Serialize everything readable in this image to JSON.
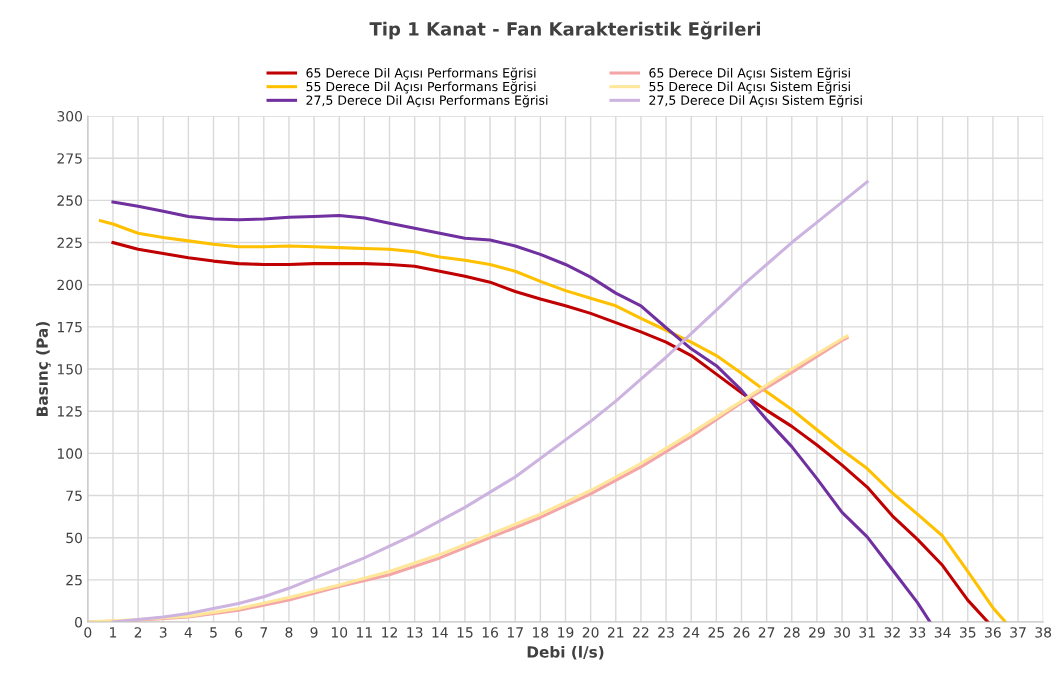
{
  "chart_data": {
    "type": "line",
    "title": "Tip 1 Kanat - Fan Karakteristik Eğrileri",
    "xlabel": "Debi (l/s)",
    "ylabel": "Basınç (Pa)",
    "xlim": [
      0,
      38
    ],
    "xticks": [
      0,
      1,
      2,
      3,
      4,
      5,
      6,
      7,
      8,
      9,
      10,
      11,
      12,
      13,
      14,
      15,
      16,
      17,
      18,
      19,
      20,
      21,
      22,
      23,
      24,
      25,
      26,
      27,
      28,
      29,
      30,
      31,
      32,
      33,
      34,
      35,
      36,
      37,
      38
    ],
    "ylim": [
      0,
      300
    ],
    "yticks": [
      0,
      25,
      50,
      75,
      100,
      125,
      150,
      175,
      200,
      225,
      250,
      275,
      300
    ],
    "grid": true,
    "legend": "top",
    "marker": "none",
    "line_style": "solid",
    "series": [
      {
        "name": "65 Derece Dil Açısı Performans Eğrisi",
        "color": "#c00000",
        "x": [
          1,
          2,
          3,
          4,
          5,
          6,
          7,
          8,
          9,
          10,
          11,
          12,
          13,
          14,
          15,
          16,
          17,
          18,
          19,
          20,
          21,
          22,
          23,
          24,
          25,
          26,
          27,
          28,
          29,
          30,
          31,
          32,
          33,
          34,
          35,
          35.8
        ],
        "values": [
          225,
          221,
          218.5,
          216,
          214,
          212.5,
          212,
          212,
          212.5,
          212.5,
          212.5,
          212,
          211,
          208,
          205,
          201.5,
          196,
          191.5,
          187.5,
          183,
          177.5,
          172,
          166,
          158,
          147,
          136,
          125.5,
          116,
          105,
          93,
          80,
          63,
          49,
          33.5,
          13,
          0
        ]
      },
      {
        "name": "55 Derece Dil Açısı Performans Eğrisi",
        "color": "#ffc000",
        "x": [
          0.5,
          1,
          2,
          3,
          4,
          5,
          6,
          7,
          8,
          9,
          10,
          11,
          12,
          13,
          14,
          15,
          16,
          17,
          18,
          19,
          20,
          21,
          22,
          23,
          24,
          25,
          26,
          27,
          28,
          29,
          30,
          31,
          32,
          33,
          34,
          35,
          36,
          36.5
        ],
        "values": [
          238,
          236,
          230.5,
          228,
          226,
          224,
          222.5,
          222.5,
          223,
          222.5,
          222,
          221.5,
          221,
          219.5,
          216.5,
          214.5,
          212,
          208,
          202,
          196.5,
          192,
          187.5,
          180,
          173,
          166,
          158,
          147.5,
          136.5,
          126,
          114,
          102,
          91,
          76.5,
          64,
          51,
          30,
          8.5,
          0
        ]
      },
      {
        "name": "27,5 Derece Dil Açısı Performans Eğrisi",
        "color": "#7030a0",
        "x": [
          1,
          2,
          3,
          4,
          5,
          6,
          7,
          8,
          9,
          10,
          11,
          12,
          13,
          14,
          15,
          16,
          17,
          18,
          19,
          20,
          21,
          22,
          23,
          24,
          25,
          26,
          27,
          28,
          29,
          30,
          31,
          32,
          33,
          33.5
        ],
        "values": [
          249,
          246.5,
          243.5,
          240.5,
          239,
          238.5,
          239,
          240,
          240.5,
          241,
          239.5,
          236.5,
          233.5,
          230.5,
          227.5,
          226.5,
          223,
          218,
          212,
          204.5,
          195,
          187.5,
          174.5,
          162,
          152,
          137.5,
          120,
          104,
          85,
          65,
          50.5,
          31,
          11.5,
          0
        ]
      },
      {
        "name": "65 Derece Dil Açısı Sistem Eğrisi",
        "color": "#f4a6a6",
        "x": [
          0,
          2,
          4,
          6,
          8,
          10,
          12,
          14,
          16,
          18,
          20,
          22,
          24,
          26,
          28,
          30,
          30.2
        ],
        "values": [
          0,
          1,
          3,
          7,
          13,
          21,
          28,
          38,
          50,
          62,
          76,
          92,
          110,
          130,
          148,
          167,
          168.5
        ]
      },
      {
        "name": "55 Derece Dil Açısı Sistem Eğrisi",
        "color": "#ffe699",
        "x": [
          0,
          2,
          4,
          6,
          8,
          10,
          12,
          14,
          16,
          18,
          20,
          22,
          24,
          26,
          28,
          30,
          30.2
        ],
        "values": [
          0,
          1.5,
          3.5,
          8,
          14.5,
          22,
          30,
          40,
          52,
          64,
          78,
          94,
          112,
          131,
          150,
          168,
          169.5
        ]
      },
      {
        "name": "27,5 Derece Dil Açısı Sistem Eğrisi",
        "color": "#cdb4e0",
        "x": [
          1,
          2,
          3,
          4,
          5,
          6,
          7,
          8,
          9,
          10,
          11,
          12,
          13,
          14,
          15,
          16,
          17,
          18,
          19,
          20,
          21,
          22,
          23,
          24,
          25,
          26,
          27,
          28,
          29,
          30,
          31
        ],
        "values": [
          0,
          1.5,
          3,
          5,
          8,
          11,
          15,
          20,
          26,
          32,
          38,
          45,
          52,
          60,
          68,
          77,
          86,
          97,
          108,
          119,
          131,
          144,
          157,
          171,
          185,
          199,
          212,
          225,
          237,
          249,
          261
        ]
      }
    ]
  }
}
